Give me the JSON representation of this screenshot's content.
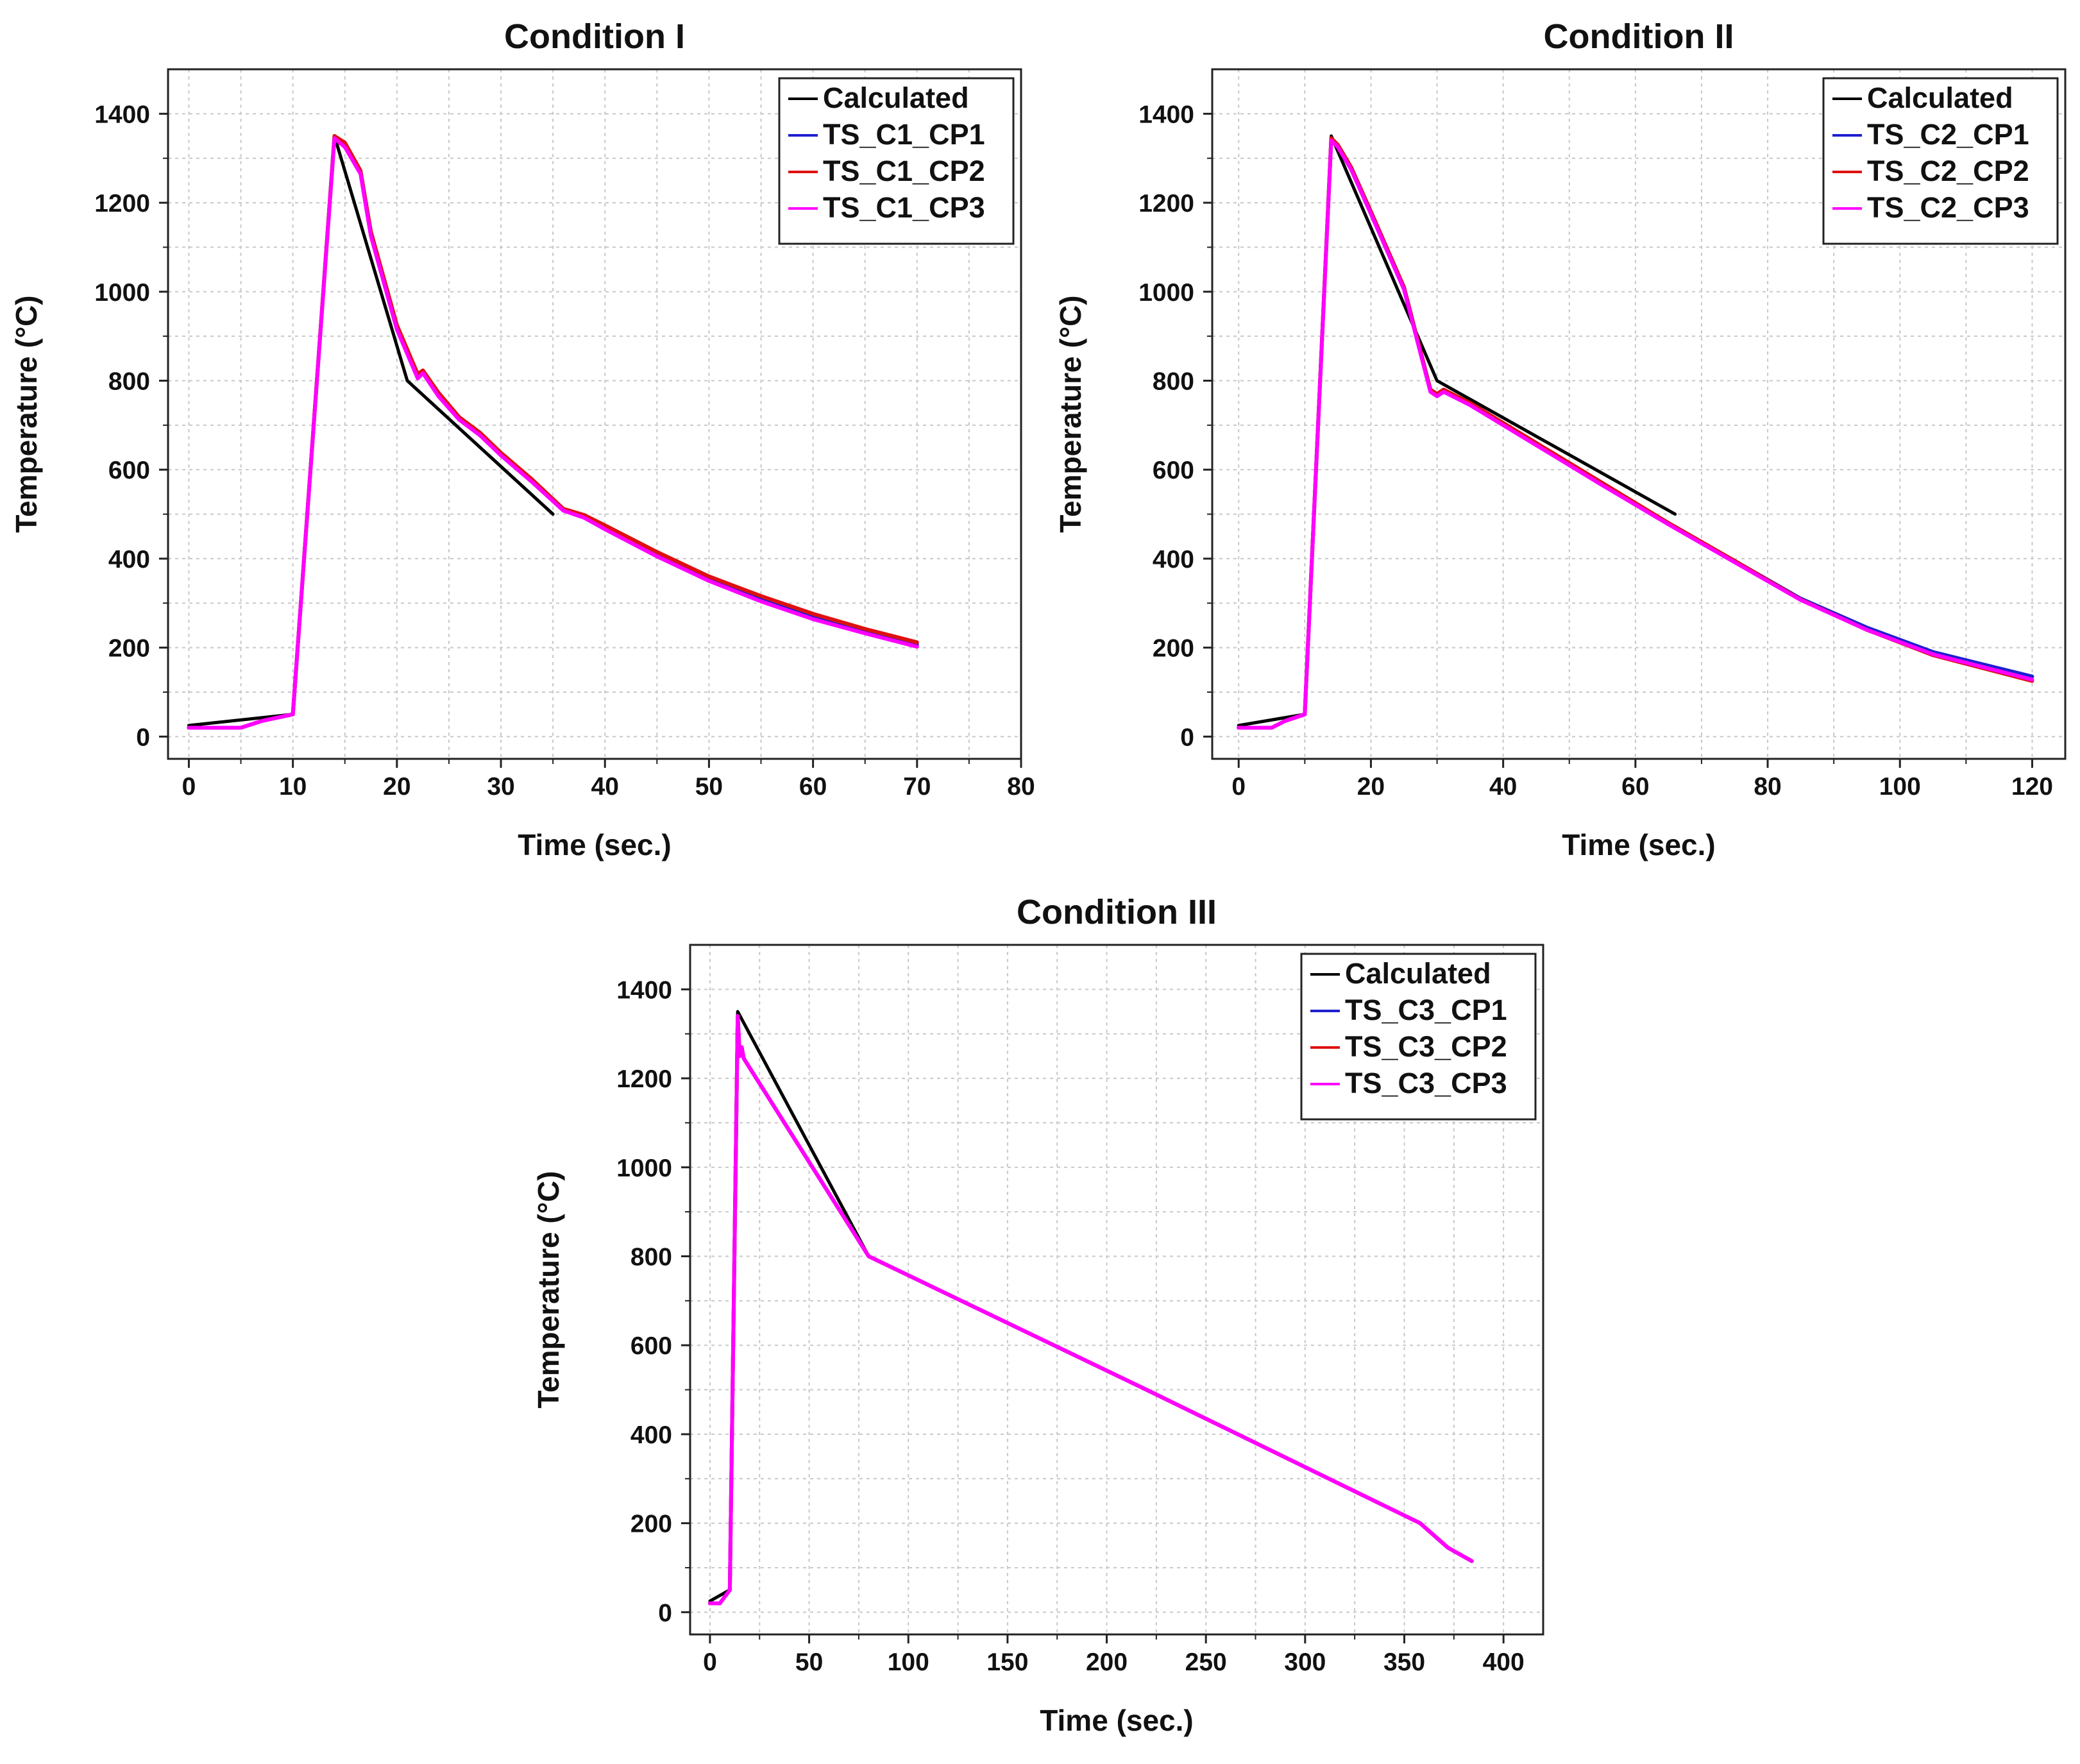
{
  "chart_data": [
    {
      "type": "line",
      "title": "Condition I",
      "xlabel": "Time (sec.)",
      "ylabel": "Temperature (°C)",
      "xlim": [
        -2,
        80
      ],
      "ylim": [
        -50,
        1500
      ],
      "xticks": [
        0,
        10,
        20,
        30,
        40,
        50,
        60,
        70,
        80
      ],
      "yticks": [
        0,
        200,
        400,
        600,
        800,
        1000,
        1200,
        1400
      ],
      "grid": true,
      "legend_position": "top-right",
      "series": [
        {
          "name": "Calculated",
          "color": "#000000",
          "x": [
            0,
            10,
            14,
            21,
            35
          ],
          "y": [
            25,
            50,
            1350,
            800,
            500
          ]
        },
        {
          "name": "TS_C1_CP1",
          "color": "#1f1fd0",
          "x": [
            0,
            5,
            7,
            10,
            14,
            15,
            16.5,
            17.5,
            20,
            22,
            22.5,
            24,
            26,
            28,
            30,
            33,
            36,
            38,
            40,
            45,
            50,
            55,
            60,
            65,
            70
          ],
          "y": [
            20,
            20,
            35,
            50,
            1350,
            1330,
            1270,
            1130,
            920,
            810,
            820,
            770,
            715,
            680,
            635,
            575,
            510,
            495,
            470,
            410,
            355,
            310,
            270,
            237,
            207
          ]
        },
        {
          "name": "TS_C1_CP2",
          "color": "#e01010",
          "x": [
            0,
            5,
            7,
            10,
            14,
            15,
            16.5,
            17.5,
            20,
            22,
            22.5,
            24,
            26,
            28,
            30,
            33,
            36,
            38,
            40,
            45,
            50,
            55,
            60,
            65,
            70
          ],
          "y": [
            20,
            20,
            35,
            50,
            1350,
            1335,
            1272,
            1135,
            925,
            815,
            823,
            773,
            718,
            683,
            638,
            578,
            512,
            498,
            475,
            415,
            360,
            316,
            276,
            242,
            212
          ]
        },
        {
          "name": "TS_C1_CP3",
          "color": "#ff00ff",
          "x": [
            0,
            5,
            7,
            10,
            14,
            15,
            16.5,
            17.5,
            20,
            22,
            22.5,
            24,
            26,
            28,
            30,
            33,
            36,
            38,
            40,
            45,
            50,
            55,
            60,
            65,
            70
          ],
          "y": [
            20,
            20,
            35,
            50,
            1345,
            1325,
            1265,
            1125,
            915,
            805,
            817,
            765,
            712,
            677,
            632,
            572,
            508,
            492,
            466,
            405,
            350,
            304,
            264,
            232,
            202
          ]
        }
      ]
    },
    {
      "type": "line",
      "title": "Condition II",
      "xlabel": "Time (sec.)",
      "ylabel": "Temperature (°C)",
      "xlim": [
        -4,
        125
      ],
      "ylim": [
        -50,
        1500
      ],
      "xticks": [
        0,
        20,
        40,
        60,
        80,
        100,
        120
      ],
      "yticks": [
        0,
        200,
        400,
        600,
        800,
        1000,
        1200,
        1400
      ],
      "grid": true,
      "legend_position": "top-right",
      "series": [
        {
          "name": "Calculated",
          "color": "#000000",
          "x": [
            0,
            10,
            14,
            30,
            66
          ],
          "y": [
            25,
            50,
            1350,
            800,
            500
          ]
        },
        {
          "name": "TS_C2_CP1",
          "color": "#1f1fd0",
          "x": [
            0,
            5,
            7,
            10,
            14,
            15,
            17,
            20,
            25,
            29,
            30,
            31,
            35,
            45,
            55,
            65,
            75,
            85,
            95,
            105,
            120
          ],
          "y": [
            20,
            20,
            35,
            50,
            1345,
            1330,
            1280,
            1180,
            1010,
            780,
            770,
            780,
            750,
            660,
            570,
            480,
            395,
            310,
            245,
            190,
            135
          ]
        },
        {
          "name": "TS_C2_CP2",
          "color": "#e01010",
          "x": [
            0,
            5,
            7,
            10,
            14,
            15,
            17,
            20,
            25,
            29,
            30,
            31,
            35,
            45,
            55,
            65,
            75,
            85,
            95,
            105,
            120
          ],
          "y": [
            20,
            20,
            35,
            50,
            1345,
            1330,
            1280,
            1180,
            1010,
            780,
            770,
            780,
            750,
            660,
            570,
            480,
            395,
            308,
            240,
            183,
            125
          ]
        },
        {
          "name": "TS_C2_CP3",
          "color": "#ff00ff",
          "x": [
            0,
            5,
            7,
            10,
            14,
            15,
            17,
            20,
            25,
            29,
            30,
            31,
            35,
            45,
            55,
            65,
            75,
            85,
            95,
            105,
            120
          ],
          "y": [
            20,
            20,
            35,
            50,
            1340,
            1325,
            1275,
            1175,
            1005,
            775,
            765,
            775,
            745,
            655,
            565,
            477,
            392,
            307,
            240,
            185,
            128
          ]
        }
      ]
    },
    {
      "type": "line",
      "title": "Condition III",
      "xlabel": "Time (sec.)",
      "ylabel": "Temperature (°C)",
      "xlim": [
        -10,
        420
      ],
      "ylim": [
        -50,
        1500
      ],
      "xticks": [
        0,
        50,
        100,
        150,
        200,
        250,
        300,
        350,
        400
      ],
      "yticks": [
        0,
        200,
        400,
        600,
        800,
        1000,
        1200,
        1400
      ],
      "grid": true,
      "legend_position": "top-right",
      "series": [
        {
          "name": "Calculated",
          "color": "#000000",
          "x": [
            0,
            10,
            14,
            80,
            220
          ],
          "y": [
            25,
            50,
            1350,
            800,
            500
          ]
        },
        {
          "name": "TS_C3_CP1",
          "color": "#1f1fd0",
          "x": [
            0,
            5,
            10,
            14,
            15,
            16,
            17,
            80,
            220,
            358,
            372,
            384
          ],
          "y": [
            20,
            20,
            50,
            1340,
            1250,
            1270,
            1245,
            800,
            500,
            200,
            145,
            115
          ]
        },
        {
          "name": "TS_C3_CP2",
          "color": "#e01010",
          "x": [
            0,
            5,
            10,
            14,
            15,
            16,
            17,
            80,
            220,
            358,
            372,
            384
          ],
          "y": [
            20,
            20,
            50,
            1340,
            1250,
            1270,
            1245,
            800,
            500,
            200,
            145,
            115
          ]
        },
        {
          "name": "TS_C3_CP3",
          "color": "#ff00ff",
          "x": [
            0,
            5,
            10,
            14,
            15,
            16,
            17,
            80,
            220,
            358,
            372,
            384
          ],
          "y": [
            20,
            20,
            50,
            1340,
            1250,
            1270,
            1245,
            800,
            500,
            200,
            145,
            115
          ]
        }
      ]
    }
  ]
}
